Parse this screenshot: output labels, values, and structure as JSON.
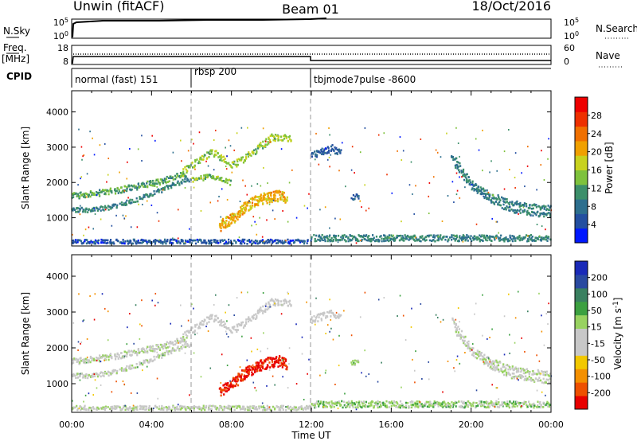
{
  "header": {
    "station": "Unwin (fitACF)",
    "beam": "Beam 01",
    "date": "18/Oct/2016"
  },
  "strip_panels": {
    "nsky": {
      "label": "N.Sky",
      "right_label": "N.Search",
      "ticks_left": [
        "10^5",
        "10^0"
      ],
      "ticks_right": [
        "10^5",
        "10^0"
      ]
    },
    "freq": {
      "label_line1": "Freq.",
      "label_line2": "[MHz]",
      "right_label": "Nave",
      "ticks_left": [
        "18",
        "8"
      ],
      "ticks_right": [
        "60",
        "0"
      ]
    },
    "cpid": {
      "label": "CPID",
      "modes": [
        {
          "name": "normal (fast) 151",
          "start_hr": 0
        },
        {
          "name": "rbsp 200",
          "start_hr": 6
        },
        {
          "name": "tbjmode7pulse -8600",
          "start_hr": 12
        }
      ]
    }
  },
  "colors": {
    "power_scale": [
      "#0018ff",
      "#234fa0",
      "#2d6f8e",
      "#3c8f6a",
      "#7ec23c",
      "#c8d21e",
      "#f0a000",
      "#f07000",
      "#ee3000",
      "#ee0000"
    ],
    "velocity_scale": [
      "#e80000",
      "#ee5000",
      "#f49000",
      "#f2c800",
      "#c8c8c8",
      "#c8c8c8",
      "#98d260",
      "#3ca040",
      "#3a8060",
      "#2a4aa0",
      "#1a2ab8"
    ]
  },
  "chart_data": [
    {
      "type": "heatmap",
      "name": "power-panel",
      "xlabel": "",
      "ylabel": "Slant Range [km]",
      "xlim": [
        0,
        24
      ],
      "ylim": [
        200,
        4600
      ],
      "yticks": [
        "1000",
        "2000",
        "3000",
        "4000"
      ],
      "colorbar": {
        "label": "Power [dB]",
        "ticks": [
          "28",
          "24",
          "20",
          "16",
          "12",
          "8",
          "4"
        ],
        "vmin": 0,
        "vmax": 32
      },
      "features": [
        {
          "desc": "echo band",
          "x": [
            0.0,
            1.0,
            2.0,
            3.0,
            4.0,
            5.0,
            5.8
          ],
          "y": [
            1650,
            1700,
            1780,
            1880,
            2000,
            2150,
            2300
          ],
          "width_km": 180,
          "value": 12
        },
        {
          "desc": "echo band",
          "x": [
            0.0,
            1.0,
            2.0,
            3.0,
            4.0,
            5.0,
            6.0
          ],
          "y": [
            1250,
            1250,
            1330,
            1500,
            1700,
            1950,
            2150
          ],
          "width_km": 130,
          "value": 10
        },
        {
          "desc": "echo band",
          "x": [
            5.5,
            6.0,
            7.0,
            8.0,
            9.0,
            10.0,
            11.0
          ],
          "y": [
            2300,
            2500,
            2900,
            2500,
            2850,
            3300,
            3300
          ],
          "width_km": 200,
          "value": 15
        },
        {
          "desc": "echo band",
          "x": [
            6.0,
            7.0,
            8.0
          ],
          "y": [
            2100,
            2200,
            2000
          ],
          "width_km": 150,
          "value": 14
        },
        {
          "desc": "echo patch",
          "x": [
            7.4,
            8.0,
            8.6,
            9.2,
            9.8,
            10.4,
            10.8
          ],
          "y": [
            800,
            1000,
            1300,
            1500,
            1600,
            1650,
            1550
          ],
          "width_km": 300,
          "value": 20
        },
        {
          "desc": "echo patch",
          "x": [
            12.0,
            12.5,
            13.0,
            13.5
          ],
          "y": [
            2800,
            2900,
            3000,
            2850
          ],
          "width_km": 200,
          "value": 6
        },
        {
          "desc": "echo patch",
          "x": [
            14.0,
            14.4
          ],
          "y": [
            1600,
            1650
          ],
          "width_km": 150,
          "value": 6
        },
        {
          "desc": "echo band",
          "x": [
            19.0,
            20.0,
            21.0,
            22.0,
            23.0,
            24.0
          ],
          "y": [
            2800,
            2000,
            1650,
            1450,
            1350,
            1300
          ],
          "width_km": 140,
          "value": 10
        },
        {
          "desc": "echo band",
          "x": [
            19.2,
            20.0,
            21.0,
            22.0,
            23.0,
            24.0
          ],
          "y": [
            2500,
            1900,
            1500,
            1250,
            1150,
            1100
          ],
          "width_km": 140,
          "value": 9
        },
        {
          "desc": "echo band",
          "x": [
            12.0,
            16.0,
            20.0,
            24.0
          ],
          "y": [
            450,
            450,
            450,
            450
          ],
          "width_km": 180,
          "value": 10
        },
        {
          "desc": "echo band",
          "x": [
            0.0,
            6.0,
            12.0
          ],
          "y": [
            350,
            350,
            350
          ],
          "width_km": 120,
          "value": 5
        }
      ]
    },
    {
      "type": "heatmap",
      "name": "velocity-panel",
      "xlabel": "Time UT",
      "ylabel": "Slant Range [km]",
      "xlim": [
        0,
        24
      ],
      "ylim": [
        200,
        4600
      ],
      "xticks": [
        "00:00",
        "04:00",
        "08:00",
        "12:00",
        "16:00",
        "20:00",
        "00:00"
      ],
      "yticks": [
        "1000",
        "2000",
        "3000",
        "4000"
      ],
      "colorbar": {
        "label": "Velocity [m s^-1]",
        "ticks": [
          "200",
          "100",
          "50",
          "15",
          "-15",
          "-50",
          "-100",
          "-200"
        ],
        "vmin": -250,
        "vmax": 250
      },
      "features": [
        {
          "desc": "echo band",
          "x": [
            0.0,
            1.0,
            2.0,
            3.0,
            4.0,
            5.0,
            5.8
          ],
          "y": [
            1650,
            1700,
            1780,
            1880,
            2000,
            2150,
            2300
          ],
          "width_km": 180,
          "value": 0
        },
        {
          "desc": "echo band",
          "x": [
            0.0,
            1.0,
            2.0,
            3.0,
            4.0,
            5.0,
            6.0
          ],
          "y": [
            1250,
            1250,
            1330,
            1500,
            1700,
            1950,
            2150
          ],
          "width_km": 130,
          "value": 0
        },
        {
          "desc": "echo band",
          "x": [
            5.5,
            6.0,
            7.0,
            8.0,
            9.0,
            10.0,
            11.0
          ],
          "y": [
            2300,
            2500,
            2900,
            2500,
            2850,
            3300,
            3300
          ],
          "width_km": 200,
          "value": -20
        },
        {
          "desc": "echo patch",
          "x": [
            7.4,
            8.0,
            8.6,
            9.2,
            9.8,
            10.4,
            10.8
          ],
          "y": [
            800,
            1000,
            1300,
            1500,
            1600,
            1650,
            1550
          ],
          "width_km": 300,
          "value": -220
        },
        {
          "desc": "echo patch",
          "x": [
            12.0,
            12.5,
            13.0,
            13.5
          ],
          "y": [
            2800,
            2900,
            3000,
            2850
          ],
          "width_km": 200,
          "value": -20
        },
        {
          "desc": "echo patch",
          "x": [
            14.0,
            14.4
          ],
          "y": [
            1600,
            1650
          ],
          "width_km": 150,
          "value": 30
        },
        {
          "desc": "echo band",
          "x": [
            19.0,
            20.0,
            21.0,
            22.0,
            23.0,
            24.0
          ],
          "y": [
            2800,
            2000,
            1650,
            1450,
            1350,
            1300
          ],
          "width_km": 140,
          "value": 0
        },
        {
          "desc": "echo band",
          "x": [
            19.2,
            20.0,
            21.0,
            22.0,
            23.0,
            24.0
          ],
          "y": [
            2500,
            1900,
            1500,
            1250,
            1150,
            1100
          ],
          "width_km": 140,
          "value": 5
        },
        {
          "desc": "echo band",
          "x": [
            12.0,
            16.0,
            20.0,
            24.0
          ],
          "y": [
            450,
            450,
            450,
            450
          ],
          "width_km": 180,
          "value": 40
        },
        {
          "desc": "echo band",
          "x": [
            0.0,
            6.0,
            12.0
          ],
          "y": [
            350,
            350,
            350
          ],
          "width_km": 120,
          "value": 0
        }
      ]
    }
  ]
}
